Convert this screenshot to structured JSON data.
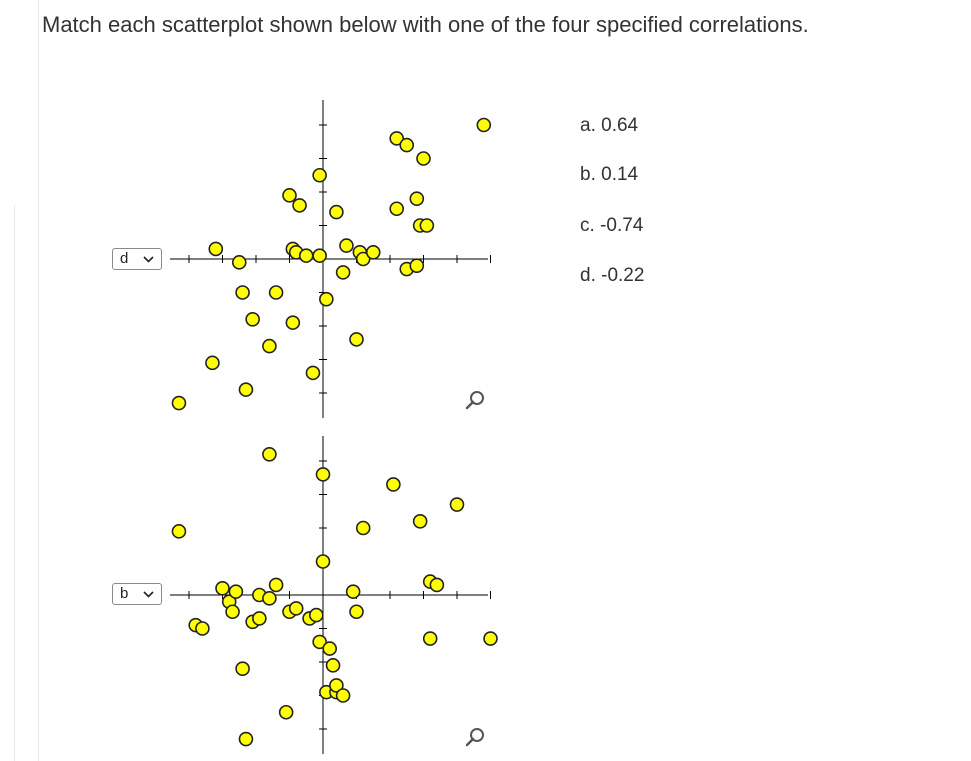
{
  "question": "Match each scatterplot shown below with one of the four specified correlations.",
  "selects": [
    {
      "value": "d"
    },
    {
      "value": "b"
    }
  ],
  "options": [
    "a. 0.64",
    "b. 0.14",
    "c. -0.74",
    "d. -0.22"
  ],
  "colors": {
    "marker_fill": "#ffff00",
    "marker_stroke": "#222222",
    "axis": "#000000"
  },
  "icons": {
    "dropdown": "chevron-down-icon",
    "zoom": "magnify-icon"
  },
  "chart_data": [
    {
      "type": "scatter",
      "title": "",
      "xlabel": "",
      "ylabel": "",
      "xlim": [
        -4.6,
        5.1
      ],
      "ylim": [
        -4.7,
        4.7
      ],
      "grid": false,
      "points": [
        [
          -4.3,
          -4.3
        ],
        [
          -3.3,
          -3.1
        ],
        [
          -3.2,
          0.3
        ],
        [
          -2.5,
          -0.1
        ],
        [
          -2.3,
          -3.9
        ],
        [
          -2.4,
          -1.0
        ],
        [
          -2.1,
          -1.8
        ],
        [
          -1.6,
          -2.6
        ],
        [
          -1.4,
          -1.0
        ],
        [
          -0.9,
          -1.9
        ],
        [
          -1.0,
          1.9
        ],
        [
          -0.7,
          1.6
        ],
        [
          -0.9,
          0.3
        ],
        [
          -0.8,
          0.2
        ],
        [
          -0.5,
          0.1
        ],
        [
          -0.3,
          -3.4
        ],
        [
          -0.1,
          2.5
        ],
        [
          -0.1,
          0.1
        ],
        [
          0.1,
          -1.2
        ],
        [
          0.4,
          1.4
        ],
        [
          0.6,
          -0.4
        ],
        [
          0.7,
          0.4
        ],
        [
          1.1,
          0.2
        ],
        [
          1.0,
          -2.4
        ],
        [
          1.2,
          0.0
        ],
        [
          1.5,
          0.2
        ],
        [
          2.2,
          3.6
        ],
        [
          2.2,
          1.5
        ],
        [
          2.5,
          3.4
        ],
        [
          2.5,
          -0.3
        ],
        [
          2.8,
          -0.2
        ],
        [
          2.8,
          1.8
        ],
        [
          2.9,
          1.0
        ],
        [
          3.1,
          1.0
        ],
        [
          3.0,
          3.0
        ],
        [
          4.8,
          4.0
        ]
      ]
    },
    {
      "type": "scatter",
      "title": "",
      "xlabel": "",
      "ylabel": "",
      "xlim": [
        -4.6,
        5.1
      ],
      "ylim": [
        -4.7,
        4.7
      ],
      "grid": false,
      "points": [
        [
          -4.3,
          1.9
        ],
        [
          -3.8,
          -0.9
        ],
        [
          -3.6,
          -1.0
        ],
        [
          -3.0,
          0.2
        ],
        [
          -2.8,
          -0.2
        ],
        [
          -2.7,
          -0.5
        ],
        [
          -2.6,
          0.1
        ],
        [
          -2.4,
          -2.2
        ],
        [
          -2.3,
          -4.3
        ],
        [
          -2.1,
          -0.8
        ],
        [
          -1.9,
          -0.7
        ],
        [
          -1.9,
          0.0
        ],
        [
          -1.6,
          4.2
        ],
        [
          -1.6,
          -0.1
        ],
        [
          -1.4,
          0.3
        ],
        [
          -1.1,
          -3.5
        ],
        [
          -1.0,
          -0.5
        ],
        [
          -0.8,
          -0.4
        ],
        [
          -0.4,
          -0.7
        ],
        [
          -0.2,
          -0.6
        ],
        [
          -0.1,
          -1.4
        ],
        [
          0.0,
          1.0
        ],
        [
          0.0,
          3.6
        ],
        [
          0.2,
          -1.6
        ],
        [
          0.3,
          -2.1
        ],
        [
          0.1,
          -2.9
        ],
        [
          0.4,
          -2.9
        ],
        [
          0.4,
          -2.7
        ],
        [
          0.6,
          -3.0
        ],
        [
          0.9,
          0.1
        ],
        [
          1.0,
          -0.5
        ],
        [
          1.2,
          2.0
        ],
        [
          2.1,
          3.3
        ],
        [
          2.9,
          2.2
        ],
        [
          3.2,
          -1.3
        ],
        [
          3.2,
          0.4
        ],
        [
          3.4,
          0.3
        ],
        [
          4.0,
          2.7
        ],
        [
          5.0,
          -1.3
        ]
      ]
    }
  ]
}
